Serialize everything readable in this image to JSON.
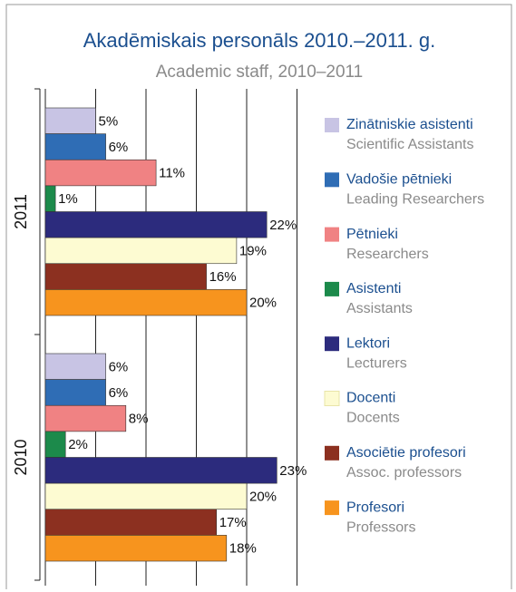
{
  "chart_data": {
    "type": "bar",
    "orientation": "horizontal",
    "title": "Akadēmiskais personāls 2010.–2011. g.",
    "subtitle": "Academic staff, 2010–2011",
    "categories": [
      "2011",
      "2010"
    ],
    "xlim": [
      0,
      25
    ],
    "xticks": [
      0,
      5,
      10,
      15,
      20,
      25
    ],
    "grid": true,
    "legend": "right",
    "series": [
      {
        "name": "Zinātniskie asistenti",
        "name_en": "Scientific Assistants",
        "color": "#c8c4e4",
        "values": [
          5,
          6
        ],
        "value_labels": [
          "5%",
          "6%"
        ]
      },
      {
        "name": "Vadošie pētnieki",
        "name_en": "Leading Researchers",
        "color": "#2f6db5",
        "values": [
          6,
          6
        ],
        "value_labels": [
          "6%",
          "6%"
        ]
      },
      {
        "name": "Pētnieki",
        "name_en": "Researchers",
        "color": "#f08283",
        "values": [
          11,
          8
        ],
        "value_labels": [
          "11%",
          "8%"
        ]
      },
      {
        "name": "Asistenti",
        "name_en": "Assistants",
        "color": "#1c8a4b",
        "values": [
          1,
          2
        ],
        "value_labels": [
          "1%",
          "2%"
        ]
      },
      {
        "name": "Lektori",
        "name_en": "Lecturers",
        "color": "#2c2b7d",
        "values": [
          22,
          23
        ],
        "value_labels": [
          "22%",
          "23%"
        ]
      },
      {
        "name": "Docenti",
        "name_en": "Docents",
        "color": "#fdfbd2",
        "values": [
          19,
          20
        ],
        "value_labels": [
          "19%",
          "20%"
        ]
      },
      {
        "name": "Asociētie profesori",
        "name_en": "Assoc. professors",
        "color": "#8c3020",
        "values": [
          16,
          17
        ],
        "value_labels": [
          "16%",
          "17%"
        ]
      },
      {
        "name": "Profesori",
        "name_en": "Professors",
        "color": "#f7941e",
        "values": [
          20,
          18
        ],
        "value_labels": [
          "20%",
          "18%"
        ]
      }
    ]
  }
}
